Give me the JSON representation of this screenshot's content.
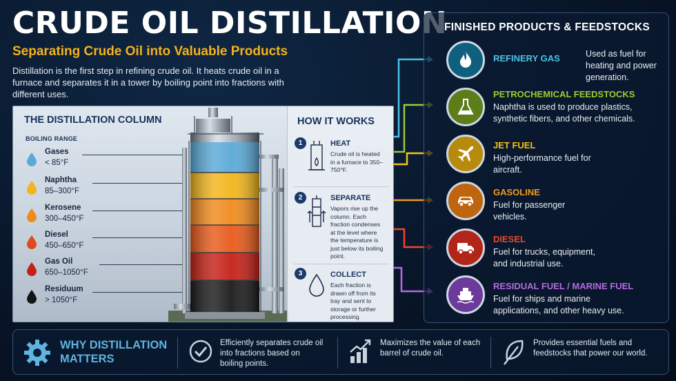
{
  "header": {
    "title": "CRUDE OIL DISTILLATION",
    "subtitle": "Separating Crude Oil into Valuable Products",
    "intro": "Distillation is the first step in refining crude oil. It heats crude oil in a furnace and separates it in a tower by boiling point into fractions with different uses."
  },
  "column": {
    "title": "THE DISTILLATION COLUMN",
    "boiling_label": "BOILING RANGE",
    "fractions": [
      {
        "name": "Gases",
        "range": "< 85°F",
        "color": "#5aa9d8"
      },
      {
        "name": "Naphtha",
        "range": "85–300°F",
        "color": "#f2b51b"
      },
      {
        "name": "Kerosene",
        "range": "300–450°F",
        "color": "#f08a1d"
      },
      {
        "name": "Diesel",
        "range": "450–650°F",
        "color": "#e04a1c"
      },
      {
        "name": "Gas Oil",
        "range": "650–1050°F",
        "color": "#c42016"
      },
      {
        "name": "Residuum",
        "range": "> 1050°F",
        "color": "#141414"
      }
    ]
  },
  "how": {
    "title": "HOW IT WORKS",
    "steps": [
      {
        "num": "1",
        "title": "HEAT",
        "text": "Crude oil is heated in a furnace to 350–750°F."
      },
      {
        "num": "2",
        "title": "SEPARATE",
        "text": "Vapors rise up the column. Each fraction condenses at the level where the temperature is just below its boiling point."
      },
      {
        "num": "3",
        "title": "COLLECT",
        "text": "Each fraction is drawn off from its tray and sent to storage or further processing."
      }
    ]
  },
  "products": {
    "title": "FINISHED PRODUCTS & FEEDSTOCKS",
    "items": [
      {
        "name": "REFINERY GAS",
        "desc": "Used as fuel for heating and power generation.",
        "color": "#4cc3e8",
        "bg": "#0f5f7e",
        "icon": "flame-icon"
      },
      {
        "name": "PETROCHEMICAL FEEDSTOCKS",
        "desc": "Naphtha is used to produce plastics, synthetic fibers, and other chemicals.",
        "color": "#9acd32",
        "bg": "#5c7d18",
        "icon": "flask-icon"
      },
      {
        "name": "JET FUEL",
        "desc": "High-performance fuel for aircraft.",
        "color": "#f5c518",
        "bg": "#b88a0c",
        "icon": "airplane-icon"
      },
      {
        "name": "GASOLINE",
        "desc": "Fuel for passenger vehicles.",
        "color": "#f39a1e",
        "bg": "#c0650f",
        "icon": "car-icon"
      },
      {
        "name": "DIESEL",
        "desc": "Fuel for trucks, equipment, and industrial use.",
        "color": "#f0462a",
        "bg": "#b2261a",
        "icon": "truck-icon"
      },
      {
        "name": "RESIDUAL FUEL / MARINE FUEL",
        "desc": "Fuel for ships and marine applications, and other heavy use.",
        "color": "#b56be0",
        "bg": "#6b3a9a",
        "icon": "ship-icon"
      }
    ]
  },
  "bottom": {
    "title": "WHY DISTILLATION MATTERS",
    "points": [
      {
        "text": "Efficiently separates crude oil into fractions based on boiling points.",
        "icon": "checkmark-icon"
      },
      {
        "text": "Maximizes the value of each barrel of crude oil.",
        "icon": "growth-chart-icon"
      },
      {
        "text": "Provides essential fuels and feedstocks that power our world.",
        "icon": "leaf-icon"
      }
    ]
  }
}
